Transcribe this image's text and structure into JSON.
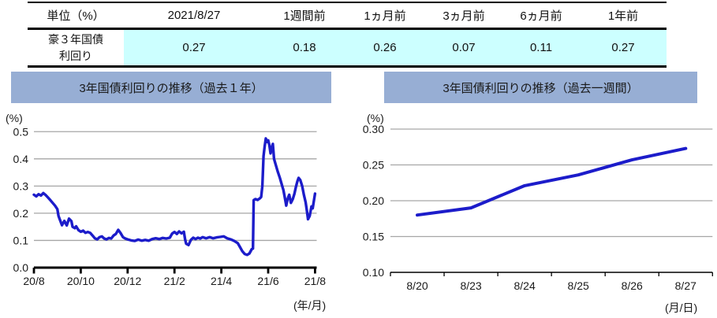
{
  "table": {
    "header": [
      "単位（%）",
      "2021/8/27",
      "1週間前",
      "1ヵ月前",
      "3ヵ月前",
      "6ヵ月前",
      "1年前"
    ],
    "row_label": "豪３年国債\n利回り",
    "values": [
      "0.27",
      "0.18",
      "0.26",
      "0.07",
      "0.11",
      "0.27"
    ]
  },
  "colors": {
    "line": "#1c1cca",
    "grid": "#a6a6a6",
    "title_bar": "#97AED4",
    "cell_highlight": "#CCFFFF"
  },
  "chart_data": [
    {
      "type": "line",
      "title": "3年国債利回りの推移（過去１年）",
      "ylabel_unit": "(%)",
      "xlabel_unit": "(年/月)",
      "ylim": [
        0,
        0.5
      ],
      "grid": "horizontal",
      "legend": "none",
      "y_ticks": [
        "0.0",
        "0.1",
        "0.2",
        "0.3",
        "0.4",
        "0.5"
      ],
      "x_ticks": [
        "20/8",
        "20/10",
        "20/12",
        "21/2",
        "21/4",
        "21/6",
        "21/8"
      ],
      "x_unit": "months since 2020/8",
      "series": [
        {
          "name": "豪3年国債利回り",
          "points": [
            [
              0,
              0.268
            ],
            [
              0.1,
              0.262
            ],
            [
              0.2,
              0.27
            ],
            [
              0.3,
              0.265
            ],
            [
              0.4,
              0.274
            ],
            [
              0.5,
              0.267
            ],
            [
              0.6,
              0.258
            ],
            [
              0.7,
              0.248
            ],
            [
              0.8,
              0.238
            ],
            [
              0.9,
              0.228
            ],
            [
              1.0,
              0.215
            ],
            [
              1.05,
              0.19
            ],
            [
              1.1,
              0.178
            ],
            [
              1.2,
              0.156
            ],
            [
              1.3,
              0.172
            ],
            [
              1.4,
              0.155
            ],
            [
              1.5,
              0.18
            ],
            [
              1.6,
              0.171
            ],
            [
              1.65,
              0.15
            ],
            [
              1.75,
              0.145
            ],
            [
              1.8,
              0.152
            ],
            [
              1.9,
              0.138
            ],
            [
              2.0,
              0.132
            ],
            [
              2.1,
              0.136
            ],
            [
              2.2,
              0.128
            ],
            [
              2.3,
              0.131
            ],
            [
              2.4,
              0.128
            ],
            [
              2.5,
              0.118
            ],
            [
              2.6,
              0.108
            ],
            [
              2.7,
              0.104
            ],
            [
              2.8,
              0.112
            ],
            [
              2.9,
              0.115
            ],
            [
              3.0,
              0.107
            ],
            [
              3.1,
              0.104
            ],
            [
              3.2,
              0.109
            ],
            [
              3.3,
              0.107
            ],
            [
              3.4,
              0.118
            ],
            [
              3.5,
              0.124
            ],
            [
              3.6,
              0.139
            ],
            [
              3.7,
              0.127
            ],
            [
              3.8,
              0.112
            ],
            [
              3.9,
              0.107
            ],
            [
              4.0,
              0.104
            ],
            [
              4.15,
              0.1
            ],
            [
              4.3,
              0.098
            ],
            [
              4.45,
              0.103
            ],
            [
              4.6,
              0.099
            ],
            [
              4.75,
              0.102
            ],
            [
              4.9,
              0.099
            ],
            [
              5.05,
              0.105
            ],
            [
              5.2,
              0.108
            ],
            [
              5.35,
              0.105
            ],
            [
              5.5,
              0.109
            ],
            [
              5.65,
              0.107
            ],
            [
              5.8,
              0.11
            ],
            [
              5.9,
              0.125
            ],
            [
              6.0,
              0.131
            ],
            [
              6.1,
              0.124
            ],
            [
              6.2,
              0.133
            ],
            [
              6.3,
              0.126
            ],
            [
              6.4,
              0.132
            ],
            [
              6.45,
              0.105
            ],
            [
              6.5,
              0.088
            ],
            [
              6.6,
              0.083
            ],
            [
              6.7,
              0.102
            ],
            [
              6.8,
              0.11
            ],
            [
              6.9,
              0.105
            ],
            [
              7.0,
              0.11
            ],
            [
              7.1,
              0.107
            ],
            [
              7.2,
              0.112
            ],
            [
              7.35,
              0.108
            ],
            [
              7.5,
              0.112
            ],
            [
              7.65,
              0.108
            ],
            [
              7.8,
              0.111
            ],
            [
              7.95,
              0.113
            ],
            [
              8.1,
              0.115
            ],
            [
              8.25,
              0.108
            ],
            [
              8.4,
              0.104
            ],
            [
              8.55,
              0.098
            ],
            [
              8.7,
              0.09
            ],
            [
              8.8,
              0.075
            ],
            [
              8.9,
              0.06
            ],
            [
              9.0,
              0.05
            ],
            [
              9.1,
              0.047
            ],
            [
              9.2,
              0.052
            ],
            [
              9.3,
              0.068
            ],
            [
              9.35,
              0.07
            ],
            [
              9.38,
              0.248
            ],
            [
              9.45,
              0.252
            ],
            [
              9.55,
              0.249
            ],
            [
              9.65,
              0.255
            ],
            [
              9.7,
              0.26
            ],
            [
              9.75,
              0.3
            ],
            [
              9.8,
              0.41
            ],
            [
              9.85,
              0.445
            ],
            [
              9.9,
              0.475
            ],
            [
              9.95,
              0.462
            ],
            [
              10.0,
              0.468
            ],
            [
              10.05,
              0.45
            ],
            [
              10.1,
              0.42
            ],
            [
              10.15,
              0.44
            ],
            [
              10.2,
              0.455
            ],
            [
              10.25,
              0.4
            ],
            [
              10.3,
              0.385
            ],
            [
              10.4,
              0.355
            ],
            [
              10.5,
              0.33
            ],
            [
              10.6,
              0.3
            ],
            [
              10.65,
              0.285
            ],
            [
              10.7,
              0.262
            ],
            [
              10.77,
              0.228
            ],
            [
              10.82,
              0.25
            ],
            [
              10.87,
              0.262
            ],
            [
              10.9,
              0.268
            ],
            [
              10.97,
              0.238
            ],
            [
              11.05,
              0.252
            ],
            [
              11.12,
              0.272
            ],
            [
              11.18,
              0.295
            ],
            [
              11.25,
              0.318
            ],
            [
              11.3,
              0.33
            ],
            [
              11.37,
              0.322
            ],
            [
              11.45,
              0.3
            ],
            [
              11.52,
              0.27
            ],
            [
              11.6,
              0.24
            ],
            [
              11.65,
              0.21
            ],
            [
              11.7,
              0.178
            ],
            [
              11.77,
              0.19
            ],
            [
              11.85,
              0.225
            ],
            [
              11.9,
              0.218
            ],
            [
              12.0,
              0.272
            ]
          ]
        }
      ]
    },
    {
      "type": "line",
      "title": "3年国債利回りの推移（過去一週間）",
      "ylabel_unit": "(%)",
      "xlabel_unit": "(月/日)",
      "ylim": [
        0.1,
        0.3
      ],
      "grid": "horizontal",
      "legend": "none",
      "y_ticks": [
        "0.10",
        "0.15",
        "0.20",
        "0.25",
        "0.30"
      ],
      "categories": [
        "8/20",
        "8/23",
        "8/24",
        "8/25",
        "8/26",
        "8/27"
      ],
      "values": [
        0.18,
        0.19,
        0.221,
        0.236,
        0.257,
        0.273
      ]
    }
  ]
}
